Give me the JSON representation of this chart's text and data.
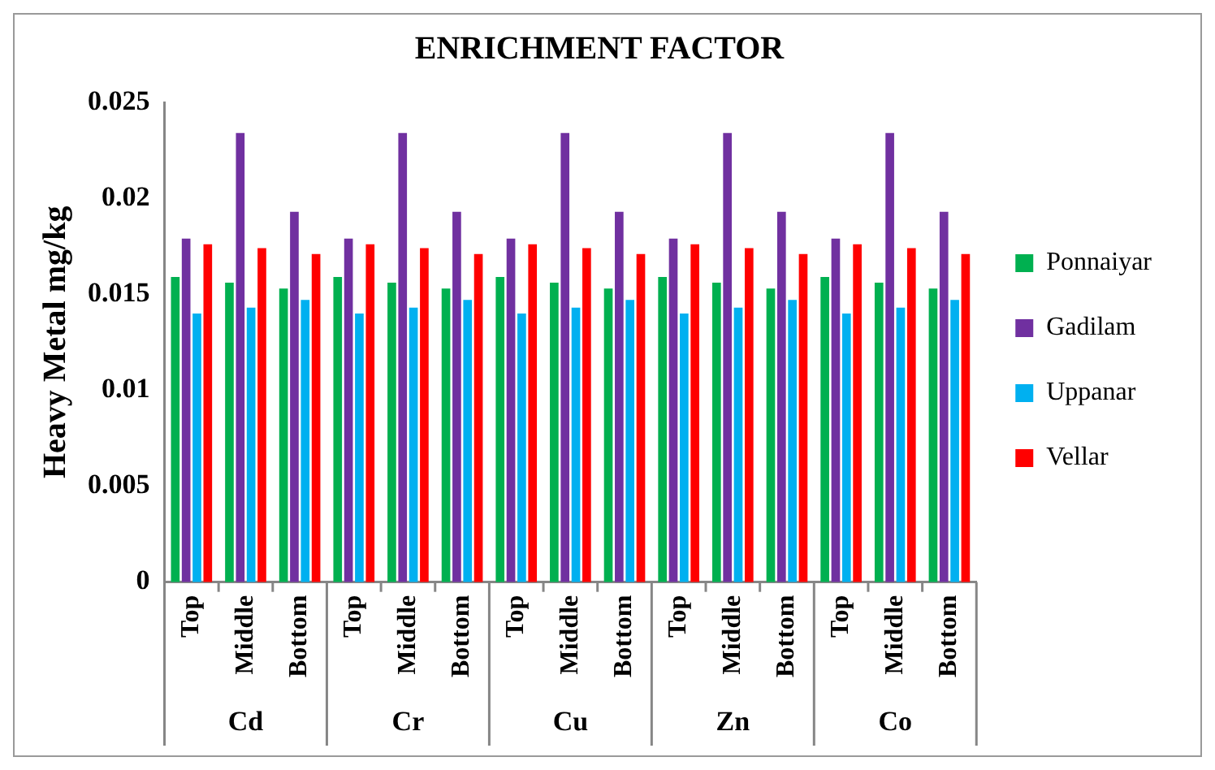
{
  "chart_data": {
    "type": "bar",
    "title": "ENRICHMENT FACTOR",
    "ylabel": "Heavy Metal mg/kg",
    "categories": [
      "Top",
      "Middle",
      "Bottom",
      "Top",
      "Middle",
      "Bottom",
      "Top",
      "Middle",
      "Bottom",
      "Top",
      "Middle",
      "Bottom",
      "Top",
      "Middle",
      "Bottom"
    ],
    "annotations": [
      "Cd",
      "Cr",
      "Cu",
      "Zn",
      "Co"
    ],
    "series": [
      {
        "name": "Ponnaiyar",
        "color": "#00b050",
        "values": [
          0.0159,
          0.0156,
          0.0153,
          0.0159,
          0.0156,
          0.0153,
          0.0159,
          0.0156,
          0.0153,
          0.0159,
          0.0156,
          0.0153,
          0.0159,
          0.0156,
          0.0153
        ]
      },
      {
        "name": "Gadilam",
        "color": "#7030a0",
        "values": [
          0.0179,
          0.0234,
          0.0193,
          0.0179,
          0.0234,
          0.0193,
          0.0179,
          0.0234,
          0.0193,
          0.0179,
          0.0234,
          0.0193,
          0.0179,
          0.0234,
          0.0193
        ]
      },
      {
        "name": "Uppanar",
        "color": "#00b0f0",
        "values": [
          0.014,
          0.0143,
          0.0147,
          0.014,
          0.0143,
          0.0147,
          0.014,
          0.0143,
          0.0147,
          0.014,
          0.0143,
          0.0147,
          0.014,
          0.0143,
          0.0147
        ]
      },
      {
        "name": "Vellar",
        "color": "#ff0000",
        "values": [
          0.0176,
          0.0174,
          0.0171,
          0.0176,
          0.0174,
          0.0171,
          0.0176,
          0.0174,
          0.0171,
          0.0176,
          0.0174,
          0.0171,
          0.0176,
          0.0174,
          0.0171
        ]
      }
    ],
    "ylim": [
      0,
      0.025
    ],
    "yticks": [
      0,
      0.005,
      0.01,
      0.015,
      0.02,
      0.025
    ],
    "grid": false,
    "legend": "right"
  }
}
